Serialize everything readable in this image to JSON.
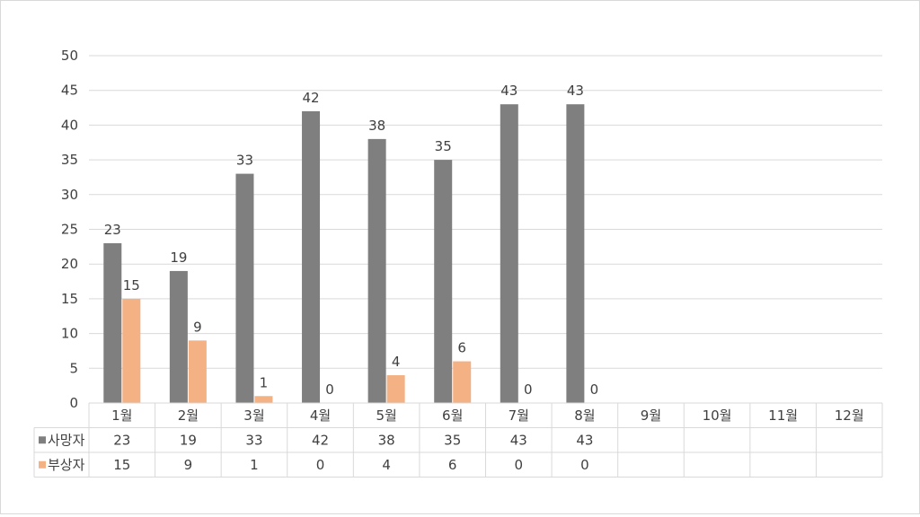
{
  "chart_data": {
    "type": "bar",
    "categories": [
      "1월",
      "2월",
      "3월",
      "4월",
      "5월",
      "6월",
      "7월",
      "8월",
      "9월",
      "10월",
      "11월",
      "12월"
    ],
    "series": [
      {
        "name": "사망자",
        "values": [
          23,
          19,
          33,
          42,
          38,
          35,
          43,
          43,
          null,
          null,
          null,
          null
        ],
        "color": "#7f7f7f"
      },
      {
        "name": "부상자",
        "values": [
          15,
          9,
          1,
          0,
          4,
          6,
          0,
          0,
          null,
          null,
          null,
          null
        ],
        "color": "#f4b183"
      }
    ],
    "ylim": [
      0,
      50
    ],
    "yticks": [
      0,
      5,
      10,
      15,
      20,
      25,
      30,
      35,
      40,
      45,
      50
    ],
    "grid": true,
    "data_table": true
  }
}
